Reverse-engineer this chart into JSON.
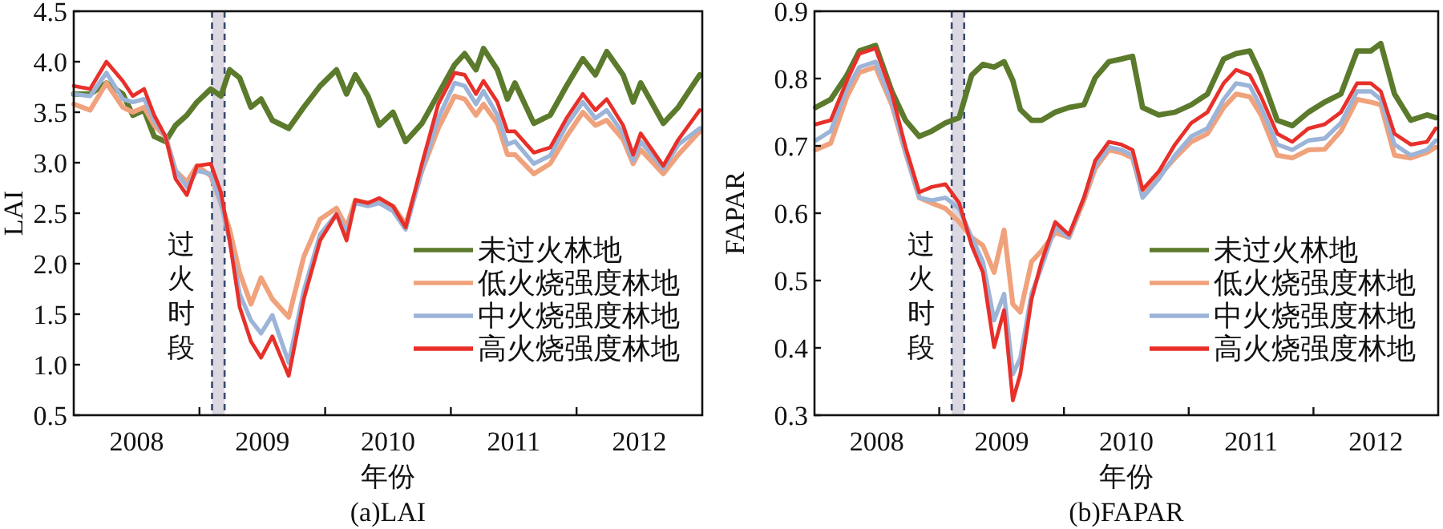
{
  "chart_data": [
    {
      "type": "line",
      "title": "(a)LAI",
      "xlabel": "年份",
      "ylabel": "LAI",
      "legend": "bottom right",
      "xlim": [
        2007.5,
        2012.5
      ],
      "ylim": [
        0.5,
        4.5
      ],
      "xticks": [
        {
          "value": 2008,
          "label": "2008"
        },
        {
          "value": 2009,
          "label": "2009"
        },
        {
          "value": 2010,
          "label": "2010"
        },
        {
          "value": 2011,
          "label": "2011"
        },
        {
          "value": 2012,
          "label": "2012"
        },
        {
          "value": 2008.5,
          "label": null
        },
        {
          "value": 2009.5,
          "label": null
        },
        {
          "value": 2010.5,
          "label": null
        },
        {
          "value": 2011.5,
          "label": null
        }
      ],
      "yticks": [
        {
          "value": 0.5,
          "label": "0.5"
        },
        {
          "value": 1,
          "label": "1.0"
        },
        {
          "value": 1.5,
          "label": "1.5"
        },
        {
          "value": 2,
          "label": "2.0"
        },
        {
          "value": 2.5,
          "label": "2.5"
        },
        {
          "value": 3,
          "label": "3.0"
        },
        {
          "value": 3.5,
          "label": "3.5"
        },
        {
          "value": 4,
          "label": "4.0"
        },
        {
          "value": 4.5,
          "label": "4.5"
        }
      ],
      "bands": [
        {
          "axis": "x",
          "from": 2008.6,
          "to": 2008.7,
          "label": "过火时段",
          "color": "#dcd8e2"
        }
      ],
      "ref_lines": [
        {
          "axis": "x",
          "value": 2008.6,
          "color": "#3a4a6e",
          "line_style": "dashed"
        },
        {
          "axis": "x",
          "value": 2008.7,
          "color": "#3a4a6e",
          "line_style": "dashed"
        }
      ],
      "x": [
        2007.5,
        2007.63,
        2007.76,
        2007.89,
        2007.97,
        2008.06,
        2008.14,
        2008.23,
        2008.31,
        2008.4,
        2008.48,
        2008.59,
        2008.67,
        2008.74,
        2008.82,
        2008.91,
        2008.99,
        2009.08,
        2009.21,
        2009.33,
        2009.46,
        2009.59,
        2009.67,
        2009.74,
        2009.84,
        2009.93,
        2010.04,
        2010.14,
        2010.27,
        2010.4,
        2010.53,
        2010.61,
        2010.7,
        2010.76,
        2010.87,
        2010.95,
        2011.01,
        2011.16,
        2011.29,
        2011.42,
        2011.55,
        2011.65,
        2011.74,
        2011.87,
        2011.95,
        2012.01,
        2012.19,
        2012.31,
        2012.48
      ],
      "series": [
        {
          "name": "未过火林地",
          "color": "#5b7a2c",
          "values": [
            3.68,
            3.68,
            3.79,
            3.68,
            3.47,
            3.52,
            3.26,
            3.21,
            3.37,
            3.47,
            3.6,
            3.73,
            3.66,
            3.92,
            3.84,
            3.55,
            3.63,
            3.42,
            3.34,
            3.55,
            3.76,
            3.92,
            3.68,
            3.87,
            3.66,
            3.37,
            3.5,
            3.21,
            3.39,
            3.68,
            3.97,
            4.08,
            3.92,
            4.13,
            3.92,
            3.63,
            3.79,
            3.39,
            3.47,
            3.76,
            4.03,
            3.87,
            4.1,
            3.87,
            3.6,
            3.79,
            3.39,
            3.55,
            3.87
          ]
        },
        {
          "name": "低火烧强度林地",
          "color": "#f0a27c",
          "values": [
            3.58,
            3.52,
            3.79,
            3.55,
            3.5,
            3.55,
            3.37,
            3.26,
            2.92,
            2.81,
            2.97,
            2.87,
            2.6,
            2.34,
            1.91,
            1.6,
            1.86,
            1.65,
            1.47,
            2.07,
            2.44,
            2.55,
            2.36,
            2.63,
            2.6,
            2.63,
            2.57,
            2.39,
            2.92,
            3.34,
            3.66,
            3.63,
            3.47,
            3.58,
            3.39,
            3.08,
            3.08,
            2.89,
            2.99,
            3.26,
            3.5,
            3.37,
            3.42,
            3.23,
            2.99,
            3.13,
            2.89,
            3.08,
            3.31
          ]
        },
        {
          "name": "中火烧强度林地",
          "color": "#9cb4d8",
          "values": [
            3.68,
            3.66,
            3.89,
            3.63,
            3.6,
            3.63,
            3.42,
            3.26,
            2.92,
            2.76,
            2.92,
            2.89,
            2.6,
            2.23,
            1.7,
            1.44,
            1.31,
            1.49,
            1.02,
            1.73,
            2.29,
            2.49,
            2.31,
            2.6,
            2.57,
            2.6,
            2.52,
            2.34,
            2.92,
            3.44,
            3.79,
            3.76,
            3.58,
            3.71,
            3.47,
            3.18,
            3.21,
            2.99,
            3.07,
            3.37,
            3.6,
            3.44,
            3.52,
            3.29,
            3.02,
            3.21,
            2.94,
            3.18,
            3.34
          ]
        },
        {
          "name": "高火烧强度林地",
          "color": "#e8302a",
          "values": [
            3.76,
            3.73,
            4.0,
            3.81,
            3.66,
            3.73,
            3.47,
            3.26,
            2.84,
            2.68,
            2.97,
            2.99,
            2.71,
            2.23,
            1.57,
            1.23,
            1.07,
            1.28,
            0.89,
            1.65,
            2.23,
            2.49,
            2.23,
            2.63,
            2.6,
            2.65,
            2.57,
            2.36,
            2.99,
            3.58,
            3.89,
            3.87,
            3.68,
            3.81,
            3.6,
            3.31,
            3.31,
            3.1,
            3.15,
            3.44,
            3.68,
            3.52,
            3.63,
            3.37,
            3.08,
            3.29,
            2.97,
            3.23,
            3.52
          ]
        }
      ]
    },
    {
      "type": "line",
      "title": "(b)FAPAR",
      "xlabel": "年份",
      "ylabel": "FAPAR",
      "legend": "bottom right",
      "xlim": [
        2007.5,
        2012.5
      ],
      "ylim": [
        0.3,
        0.9
      ],
      "xticks": [
        {
          "value": 2008,
          "label": "2008"
        },
        {
          "value": 2009,
          "label": "2009"
        },
        {
          "value": 2010,
          "label": "2010"
        },
        {
          "value": 2011,
          "label": "2011"
        },
        {
          "value": 2012,
          "label": "2012"
        },
        {
          "value": 2008.5,
          "label": null
        },
        {
          "value": 2009.5,
          "label": null
        },
        {
          "value": 2010.5,
          "label": null
        },
        {
          "value": 2011.5,
          "label": null
        }
      ],
      "yticks": [
        0.3,
        0.4,
        0.5,
        0.6,
        0.7,
        0.8,
        0.9
      ],
      "bands": [
        {
          "axis": "x",
          "from": 2008.6,
          "to": 2008.7,
          "label": "过火时段",
          "color": "#dcd8e2"
        }
      ],
      "ref_lines": [
        {
          "axis": "x",
          "value": 2008.6,
          "color": "#3a4a6e",
          "line_style": "dashed"
        },
        {
          "axis": "x",
          "value": 2008.7,
          "color": "#3a4a6e",
          "line_style": "dashed"
        }
      ],
      "x": [
        2007.51,
        2007.63,
        2007.76,
        2007.86,
        2007.99,
        2008.12,
        2008.23,
        2008.34,
        2008.44,
        2008.55,
        2008.66,
        2008.76,
        2008.85,
        2008.94,
        2009.02,
        2009.09,
        2009.15,
        2009.24,
        2009.32,
        2009.43,
        2009.54,
        2009.66,
        2009.75,
        2009.86,
        2009.96,
        2010.05,
        2010.13,
        2010.26,
        2010.39,
        2010.52,
        2010.65,
        2010.78,
        2010.88,
        2010.99,
        2011.08,
        2011.21,
        2011.33,
        2011.46,
        2011.59,
        2011.72,
        2011.85,
        2011.96,
        2012.04,
        2012.15,
        2012.28,
        2012.41,
        2012.48
      ],
      "series": [
        {
          "name": "未过火林地",
          "color": "#5b7a2c",
          "values": [
            0.757,
            0.769,
            0.805,
            0.841,
            0.849,
            0.781,
            0.738,
            0.714,
            0.722,
            0.734,
            0.742,
            0.805,
            0.821,
            0.817,
            0.825,
            0.797,
            0.754,
            0.738,
            0.738,
            0.75,
            0.757,
            0.761,
            0.801,
            0.825,
            0.829,
            0.833,
            0.757,
            0.746,
            0.75,
            0.761,
            0.777,
            0.829,
            0.837,
            0.841,
            0.805,
            0.738,
            0.73,
            0.75,
            0.765,
            0.777,
            0.841,
            0.841,
            0.852,
            0.777,
            0.738,
            0.746,
            0.742
          ]
        },
        {
          "name": "低火烧强度林地",
          "color": "#f0a27c",
          "values": [
            0.694,
            0.704,
            0.773,
            0.809,
            0.817,
            0.761,
            0.69,
            0.623,
            0.615,
            0.607,
            0.587,
            0.564,
            0.552,
            0.512,
            0.575,
            0.465,
            0.453,
            0.528,
            0.544,
            0.571,
            0.564,
            0.619,
            0.666,
            0.694,
            0.69,
            0.682,
            0.627,
            0.655,
            0.682,
            0.706,
            0.718,
            0.757,
            0.777,
            0.773,
            0.746,
            0.686,
            0.682,
            0.694,
            0.695,
            0.722,
            0.769,
            0.765,
            0.761,
            0.686,
            0.682,
            0.69,
            0.698
          ]
        },
        {
          "name": "中火烧强度林地",
          "color": "#9cb4d8",
          "values": [
            0.708,
            0.722,
            0.785,
            0.817,
            0.825,
            0.765,
            0.69,
            0.623,
            0.619,
            0.623,
            0.607,
            0.564,
            0.528,
            0.441,
            0.48,
            0.361,
            0.385,
            0.48,
            0.52,
            0.579,
            0.564,
            0.623,
            0.67,
            0.698,
            0.694,
            0.686,
            0.623,
            0.651,
            0.686,
            0.714,
            0.726,
            0.769,
            0.793,
            0.789,
            0.757,
            0.702,
            0.694,
            0.708,
            0.711,
            0.734,
            0.781,
            0.781,
            0.769,
            0.702,
            0.686,
            0.694,
            0.708
          ]
        },
        {
          "name": "高火烧强度林地",
          "color": "#e8302a",
          "values": [
            0.732,
            0.738,
            0.797,
            0.837,
            0.845,
            0.778,
            0.698,
            0.631,
            0.639,
            0.643,
            0.615,
            0.552,
            0.512,
            0.401,
            0.456,
            0.322,
            0.361,
            0.472,
            0.528,
            0.587,
            0.568,
            0.623,
            0.678,
            0.706,
            0.702,
            0.694,
            0.635,
            0.662,
            0.702,
            0.734,
            0.75,
            0.793,
            0.813,
            0.805,
            0.773,
            0.718,
            0.706,
            0.726,
            0.732,
            0.75,
            0.793,
            0.793,
            0.781,
            0.718,
            0.702,
            0.706,
            0.726
          ]
        }
      ]
    }
  ]
}
